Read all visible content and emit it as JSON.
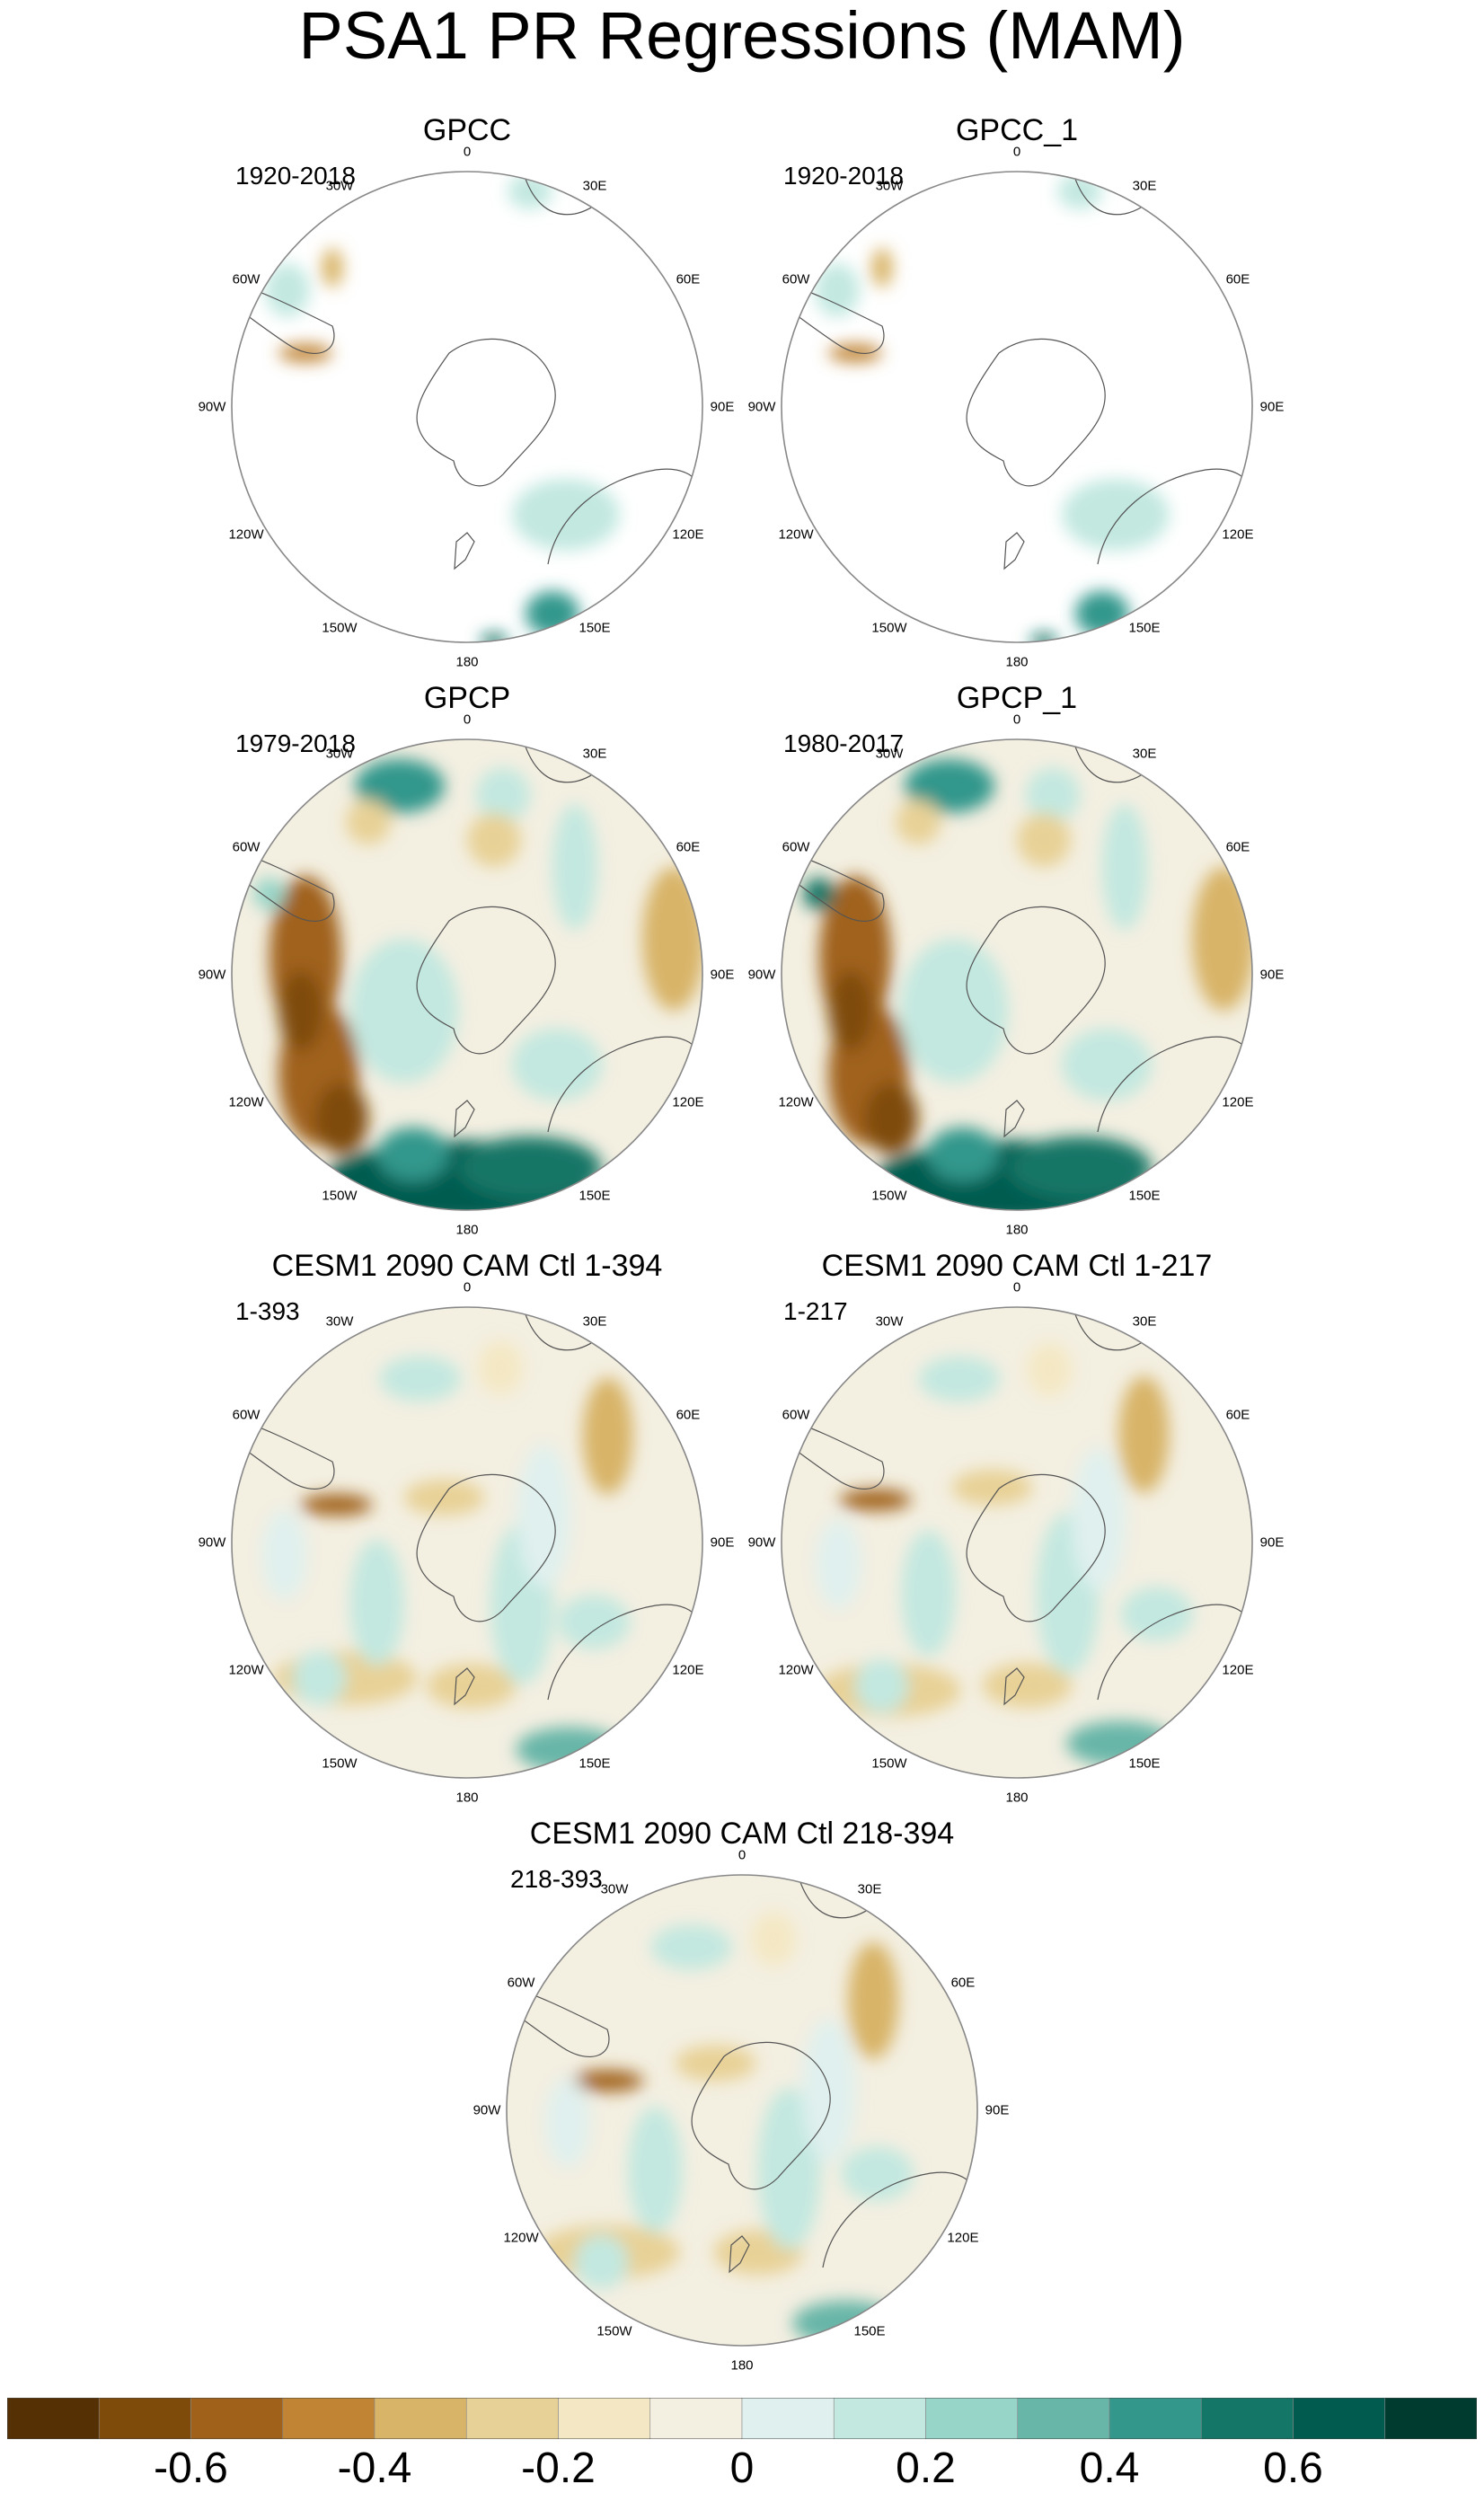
{
  "title": "PSA1 PR Regressions (MAM)",
  "panels": [
    {
      "name": "GPCC",
      "period": "1920-2018",
      "type": "obs_land"
    },
    {
      "name": "GPCC_1",
      "period": "1920-2018",
      "type": "obs_land"
    },
    {
      "name": "GPCP",
      "period": "1979-2018",
      "type": "obs_full"
    },
    {
      "name": "GPCP_1",
      "period": "1980-2017",
      "type": "obs_full"
    },
    {
      "name": "CESM1 2090 CAM Ctl 1-394",
      "period": "1-393",
      "type": "model"
    },
    {
      "name": "CESM1 2090 CAM Ctl 1-217",
      "period": "1-217",
      "type": "model"
    },
    {
      "name": "CESM1 2090 CAM Ctl 218-394",
      "period": "218-393",
      "type": "model"
    }
  ],
  "longitude_labels": [
    "0",
    "30E",
    "60E",
    "90E",
    "120E",
    "150E",
    "180",
    "150W",
    "120W",
    "90W",
    "60W",
    "30W"
  ],
  "colorbar": {
    "colors": [
      "#553005",
      "#7f4b0b",
      "#a0621b",
      "#c08434",
      "#d8b468",
      "#e8d196",
      "#f4e8c4",
      "#f3efe1",
      "#e0f0ee",
      "#c2e8e0",
      "#97d5c8",
      "#67b6a8",
      "#33978c",
      "#137666",
      "#015c4f",
      "#003b30"
    ],
    "labels": [
      "-0.6",
      "-0.4",
      "-0.2",
      "0",
      "0.2",
      "0.4",
      "0.6"
    ]
  },
  "colors": {
    "ocean_background": "#f3efe1",
    "coast": "#555555",
    "border": "#888888"
  }
}
